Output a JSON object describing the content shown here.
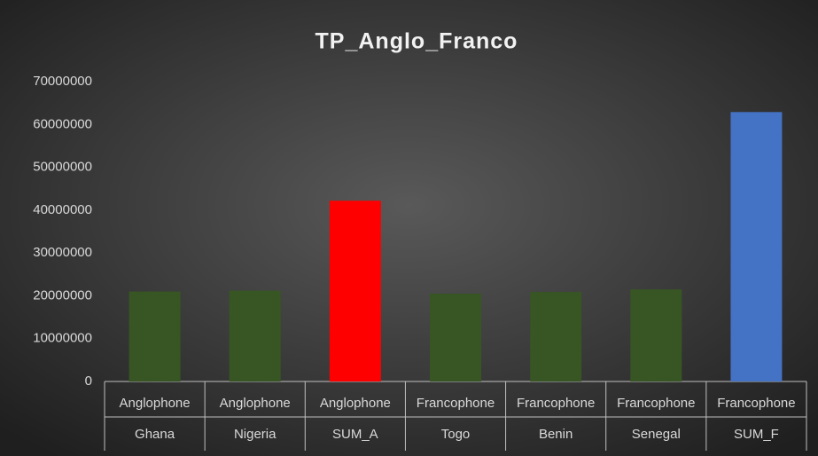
{
  "chart_data": {
    "type": "bar",
    "title": "TP_Anglo_Franco",
    "category_groups": [
      "Anglophone",
      "Anglophone",
      "Anglophone",
      "Francophone",
      "Francophone",
      "Francophone",
      "Francophone"
    ],
    "categories": [
      "Ghana",
      "Nigeria",
      "SUM_A",
      "Togo",
      "Benin",
      "Senegal",
      "SUM_F"
    ],
    "values": [
      21000000,
      21200000,
      42200000,
      20500000,
      20900000,
      21500000,
      62900000
    ],
    "colors": [
      "#375623",
      "#375623",
      "#ff0000",
      "#375623",
      "#375623",
      "#375623",
      "#4472c4"
    ],
    "ylim": [
      0,
      70000000
    ],
    "yticks": [
      0,
      10000000,
      20000000,
      30000000,
      40000000,
      50000000,
      60000000,
      70000000
    ],
    "grid": false
  }
}
